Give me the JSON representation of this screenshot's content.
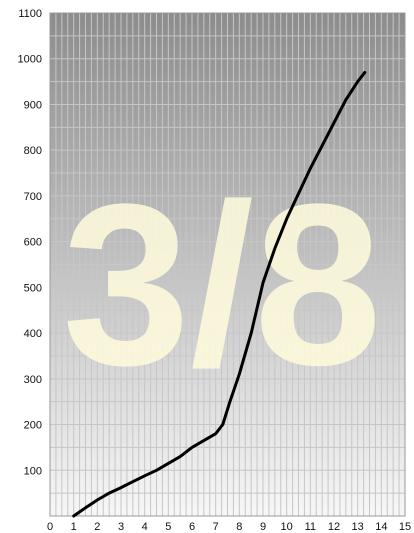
{
  "chart_data": {
    "type": "line",
    "title": "",
    "xlabel": "",
    "ylabel": "",
    "xlim": [
      0,
      15
    ],
    "ylim": [
      0,
      1100
    ],
    "x_ticks": [
      0,
      1,
      2,
      3,
      4,
      5,
      6,
      7,
      8,
      9,
      10,
      11,
      12,
      13,
      14,
      15
    ],
    "y_ticks": [
      100,
      200,
      300,
      400,
      500,
      600,
      700,
      800,
      900,
      1000,
      1100
    ],
    "grid": true,
    "watermark": "3/8",
    "series": [
      {
        "name": "",
        "color": "#000000",
        "x": [
          1.0,
          1.5,
          2.0,
          2.5,
          3.0,
          3.5,
          4.0,
          4.5,
          5.0,
          5.5,
          6.0,
          6.5,
          7.0,
          7.3,
          7.6,
          8.0,
          8.5,
          9.0,
          9.5,
          10.0,
          10.5,
          11.0,
          11.5,
          12.0,
          12.5,
          13.0,
          13.3
        ],
        "y": [
          0,
          18,
          35,
          50,
          62,
          75,
          88,
          100,
          115,
          130,
          150,
          165,
          180,
          200,
          250,
          310,
          400,
          510,
          585,
          650,
          705,
          760,
          810,
          860,
          910,
          950,
          970
        ]
      }
    ]
  },
  "colors": {
    "plot_top": "#8c8c8c",
    "plot_bottom": "#f7f7f7",
    "grid": "#c6c6c6",
    "frame": "#999999",
    "line": "#000000",
    "watermark": "#fffbdc"
  }
}
